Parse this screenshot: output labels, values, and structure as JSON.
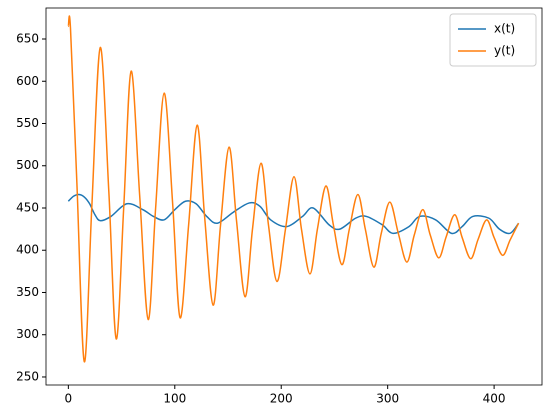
{
  "chart_data": {
    "type": "line",
    "xlim": [
      -21,
      445
    ],
    "xticks": [
      0,
      100,
      200,
      300,
      400
    ],
    "ylim": [
      240.5,
      686.7
    ],
    "yticks": [
      250,
      300,
      350,
      400,
      450,
      500,
      550,
      600,
      650
    ],
    "legend": "upper right",
    "series": [
      {
        "name": "x(t)",
        "color": "#1f77b4",
        "x": [
          0,
          5,
          10,
          15,
          20,
          25,
          30,
          40,
          55,
          70,
          80,
          90,
          100,
          110,
          120,
          130,
          140,
          155,
          170,
          180,
          190,
          205,
          220,
          230,
          245,
          255,
          270,
          280,
          295,
          305,
          320,
          330,
          345,
          360,
          370,
          380,
          395,
          405,
          415,
          423
        ],
        "values": [
          458,
          464,
          466,
          463,
          455,
          442,
          435,
          440,
          455,
          448,
          440,
          436,
          448,
          458,
          455,
          440,
          432,
          445,
          456,
          452,
          436,
          428,
          440,
          450,
          430,
          425,
          438,
          440,
          430,
          420,
          428,
          440,
          436,
          420,
          428,
          440,
          438,
          425,
          420,
          432
        ]
      },
      {
        "name": "y(t)",
        "color": "#ff7f0e",
        "x": [
          0,
          2,
          8,
          15,
          22,
          30,
          38,
          45,
          52,
          59,
          67,
          75,
          82,
          90,
          98,
          105,
          113,
          121,
          128,
          136,
          143,
          151,
          158,
          166,
          173,
          181,
          188,
          196,
          204,
          212,
          219,
          227,
          234,
          242,
          249,
          257,
          264,
          272,
          279,
          287,
          294,
          302,
          310,
          318,
          325,
          333,
          340,
          348,
          355,
          363,
          370,
          378,
          385,
          393,
          400,
          408,
          415,
          423
        ],
        "values": [
          665,
          663,
          480,
          268,
          450,
          640,
          470,
          295,
          450,
          612,
          465,
          318,
          450,
          586,
          455,
          320,
          430,
          548,
          440,
          335,
          430,
          522,
          435,
          345,
          425,
          503,
          430,
          363,
          425,
          487,
          425,
          372,
          425,
          476,
          430,
          383,
          425,
          466,
          425,
          380,
          420,
          457,
          420,
          386,
          418,
          448,
          418,
          391,
          416,
          442,
          415,
          390,
          413,
          436,
          415,
          394,
          412,
          432
        ]
      }
    ]
  }
}
